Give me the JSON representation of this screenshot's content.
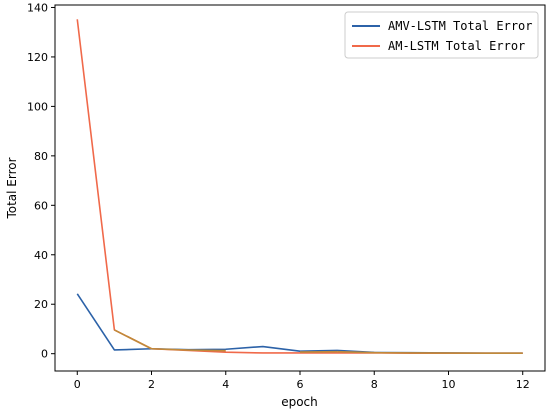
{
  "chart_data": {
    "type": "line",
    "xlabel": "epoch",
    "ylabel": "Total Error",
    "xlim": [
      -0.6,
      12.6
    ],
    "ylim": [
      -7,
      141
    ],
    "xticks": [
      0,
      2,
      4,
      6,
      8,
      10,
      12
    ],
    "yticks": [
      0,
      20,
      40,
      60,
      80,
      100,
      120,
      140
    ],
    "grid": false,
    "legend_position": "upper right",
    "x": [
      0,
      1,
      2,
      3,
      4,
      5,
      6,
      7,
      8,
      9,
      10,
      11,
      12
    ],
    "series": [
      {
        "name": "AMV-LSTM Total Error",
        "color": "#2c62a8",
        "values": [
          24.2,
          1.5,
          2.0,
          1.6,
          1.8,
          2.9,
          1.0,
          1.3,
          0.5,
          0.4,
          0.3,
          0.2,
          0.2
        ]
      },
      {
        "name": "AM-LSTM Total Error",
        "color": "#f0694a",
        "values": [
          135.2,
          9.6,
          2.0,
          1.3,
          0.6,
          0.3,
          0.3,
          0.3,
          0.3,
          0.2,
          0.2,
          0.2,
          0.2
        ]
      }
    ],
    "overlap_color": "#c08a3a"
  }
}
